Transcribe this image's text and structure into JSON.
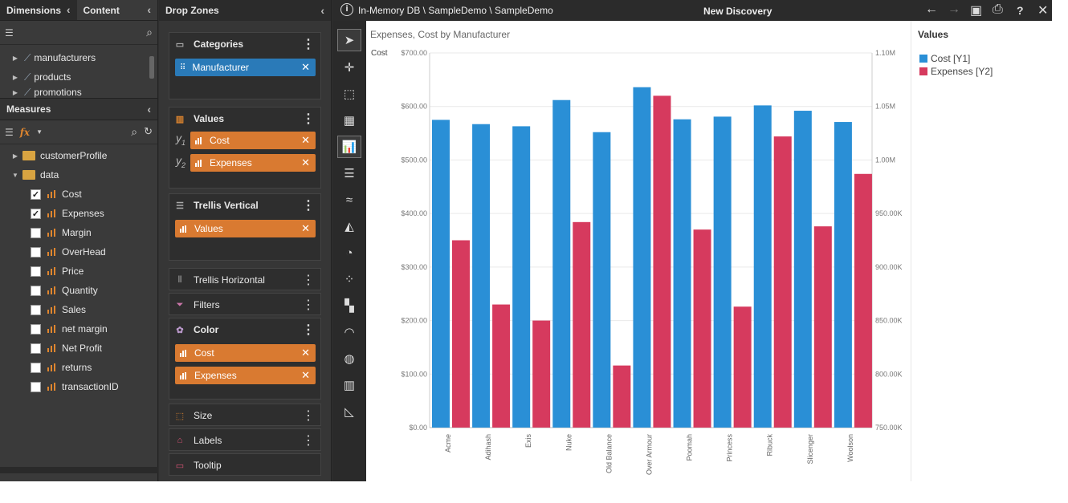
{
  "left_panel": {
    "tab_dimensions": "Dimensions",
    "tab_content": "Content",
    "dimensions": [
      "manufacturers",
      "products",
      "promotions"
    ],
    "measures_title": "Measures",
    "fx_label": "fx",
    "folders": [
      "customerProfile",
      "data"
    ],
    "measures": [
      {
        "label": "Cost",
        "checked": true
      },
      {
        "label": "Expenses",
        "checked": true
      },
      {
        "label": "Margin",
        "checked": false
      },
      {
        "label": "OverHead",
        "checked": false
      },
      {
        "label": "Price",
        "checked": false
      },
      {
        "label": "Quantity",
        "checked": false
      },
      {
        "label": "Sales",
        "checked": false
      },
      {
        "label": "net margin",
        "checked": false
      },
      {
        "label": "Net Profit",
        "checked": false
      },
      {
        "label": "returns",
        "checked": false
      },
      {
        "label": "transactionID",
        "checked": false
      }
    ]
  },
  "drop_zones": {
    "title": "Drop Zones",
    "categories": {
      "label": "Categories",
      "pill": "Manufacturer"
    },
    "values": {
      "label": "Values",
      "y1_label": "y",
      "y1_sub": "1",
      "y2_label": "y",
      "y2_sub": "2",
      "pill1": "Cost",
      "pill2": "Expenses"
    },
    "trellis_vertical": {
      "label": "Trellis Vertical",
      "pill": "Values"
    },
    "trellis_horizontal": {
      "label": "Trellis Horizontal"
    },
    "filters": {
      "label": "Filters"
    },
    "color": {
      "label": "Color",
      "pill1": "Cost",
      "pill2": "Expenses"
    },
    "size": {
      "label": "Size"
    },
    "labels": {
      "label": "Labels"
    },
    "tooltip": {
      "label": "Tooltip"
    }
  },
  "topbar": {
    "path": "In-Memory DB \\ SampleDemo \\ SampleDemo",
    "title": "New Discovery"
  },
  "legend": {
    "title": "Values",
    "items": [
      {
        "label": "Cost [Y1]",
        "color": "#2a8fd6"
      },
      {
        "label": "Expenses [Y2]",
        "color": "#d63a5e"
      }
    ]
  },
  "chart_data": {
    "type": "bar",
    "title": "Expenses, Cost by Manufacturer",
    "ylabel": "Cost",
    "categories": [
      "Acme",
      "Adihash",
      "Exis",
      "Nuke",
      "Old Balance",
      "Over Armour",
      "Poomah",
      "Princess",
      "Ribuck",
      "Slicenger",
      "Woolson"
    ],
    "series": [
      {
        "name": "Cost [Y1]",
        "axis": "y1",
        "color": "#2a8fd6",
        "values": [
          575,
          567,
          563,
          612,
          552,
          636,
          576,
          581,
          602,
          592,
          571
        ]
      },
      {
        "name": "Expenses [Y2]",
        "axis": "y2",
        "color": "#d63a5e",
        "values": [
          925000,
          865000,
          850000,
          942000,
          808000,
          1060000,
          935000,
          863000,
          1022000,
          938000,
          987000
        ]
      }
    ],
    "y1_ticks": [
      "$0.00",
      "$100.00",
      "$200.00",
      "$300.00",
      "$400.00",
      "$500.00",
      "$600.00",
      "$700.00"
    ],
    "y2_ticks": [
      "750.00K",
      "800.00K",
      "850.00K",
      "900.00K",
      "950.00K",
      "1.00M",
      "1.05M",
      "1.10M"
    ],
    "y1_range": [
      0,
      700
    ],
    "y2_range": [
      750000,
      1100000
    ],
    "grid": true
  }
}
